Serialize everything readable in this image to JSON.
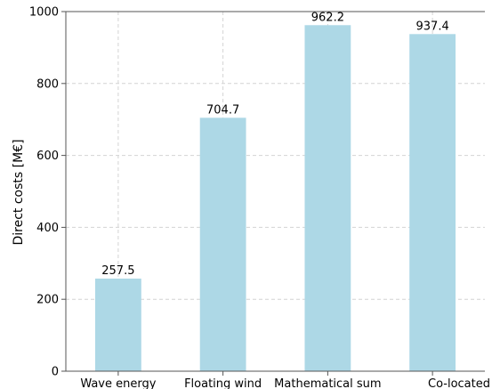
{
  "chart_data": {
    "type": "bar",
    "categories": [
      "Wave energy",
      "Floating wind",
      "Mathematical sum",
      "Co-located"
    ],
    "values": [
      257.5,
      704.7,
      962.2,
      937.4
    ],
    "value_labels": [
      "257.5",
      "704.7",
      "962.2",
      "937.4"
    ],
    "title": "",
    "xlabel": "",
    "ylabel": "Direct costs [M€]",
    "ylim": [
      0,
      1000
    ],
    "yticks": [
      0,
      200,
      400,
      600,
      800,
      1000
    ],
    "grid": true,
    "bar_color": "#add8e6"
  }
}
